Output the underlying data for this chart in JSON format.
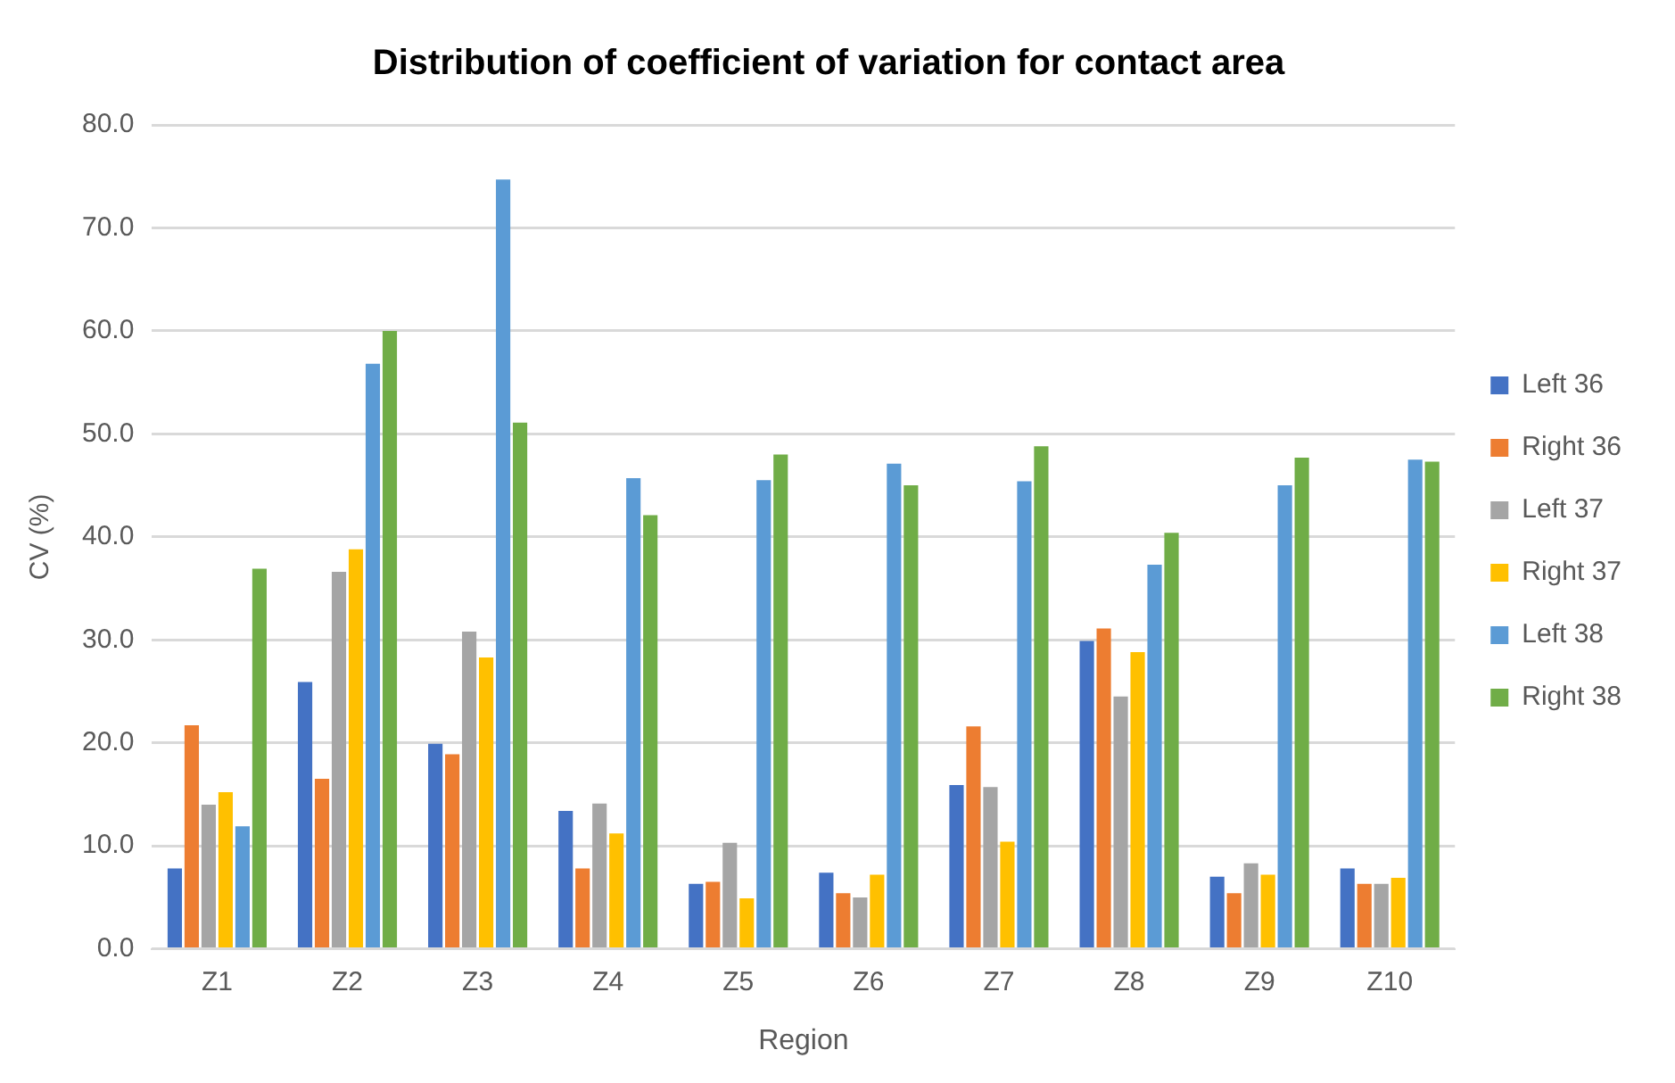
{
  "chart_data": {
    "type": "bar",
    "title": "Distribution of coefficient of variation for contact area",
    "xlabel": "Region",
    "ylabel": "CV (%)",
    "categories": [
      "Z1",
      "Z2",
      "Z3",
      "Z4",
      "Z5",
      "Z6",
      "Z7",
      "Z8",
      "Z9",
      "Z10"
    ],
    "series": [
      {
        "name": "Left 36",
        "color": "#4472c4",
        "values": [
          7.8,
          25.9,
          19.9,
          13.4,
          6.3,
          7.4,
          15.9,
          29.9,
          7.0,
          7.8
        ]
      },
      {
        "name": "Right 36",
        "color": "#ed7d31",
        "values": [
          21.7,
          16.5,
          18.9,
          7.8,
          6.5,
          5.4,
          21.6,
          31.1,
          5.4,
          6.3
        ]
      },
      {
        "name": "Left 37",
        "color": "#a5a5a5",
        "values": [
          14.0,
          36.6,
          30.8,
          14.1,
          10.3,
          5.0,
          15.7,
          24.5,
          8.3,
          6.3
        ]
      },
      {
        "name": "Right 37",
        "color": "#ffc000",
        "values": [
          15.2,
          38.8,
          28.3,
          11.2,
          4.9,
          7.2,
          10.4,
          28.8,
          7.2,
          6.9
        ]
      },
      {
        "name": "Left 38",
        "color": "#5b9bd5",
        "values": [
          11.9,
          56.8,
          74.7,
          45.7,
          45.5,
          47.1,
          45.4,
          37.3,
          45.0,
          47.5
        ]
      },
      {
        "name": "Right 38",
        "color": "#70ad47",
        "values": [
          36.9,
          60.0,
          51.1,
          42.1,
          48.0,
          45.0,
          48.8,
          40.4,
          47.7,
          47.3
        ]
      }
    ],
    "ylim": [
      0,
      80
    ],
    "yticks": [
      {
        "value": 0,
        "label": "0.0"
      },
      {
        "value": 10,
        "label": "10.0"
      },
      {
        "value": 20,
        "label": "20.0"
      },
      {
        "value": 30,
        "label": "30.0"
      },
      {
        "value": 40,
        "label": "40.0"
      },
      {
        "value": 50,
        "label": "50.0"
      },
      {
        "value": 60,
        "label": "60.0"
      },
      {
        "value": 70,
        "label": "70.0"
      },
      {
        "value": 80,
        "label": "80.0"
      }
    ],
    "grid": "y",
    "legend": "right"
  }
}
